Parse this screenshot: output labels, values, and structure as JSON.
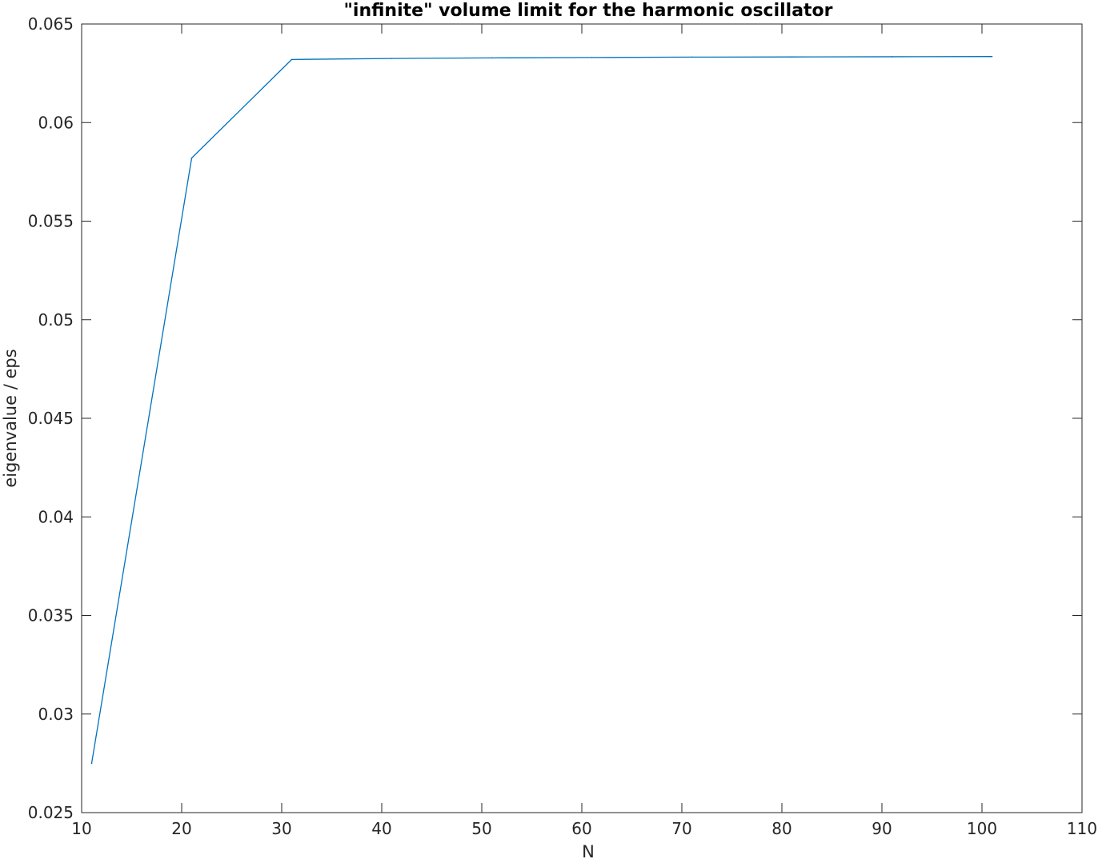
{
  "chart_data": {
    "type": "line",
    "title": "\"infinite\" volume limit for the harmonic oscillator",
    "xlabel": "N",
    "ylabel": "eigenvalue / eps",
    "xlim": [
      10,
      110
    ],
    "ylim": [
      0.025,
      0.065
    ],
    "xticks": [
      10,
      20,
      30,
      40,
      50,
      60,
      70,
      80,
      90,
      100,
      110
    ],
    "xtick_labels": [
      "10",
      "20",
      "30",
      "40",
      "50",
      "60",
      "70",
      "80",
      "90",
      "100",
      "110"
    ],
    "yticks": [
      0.025,
      0.03,
      0.035,
      0.04,
      0.045,
      0.05,
      0.055,
      0.06,
      0.065
    ],
    "ytick_labels": [
      "0.025",
      "0.03",
      "0.035",
      "0.04",
      "0.045",
      "0.05",
      "0.055",
      "0.06",
      "0.065"
    ],
    "grid": false,
    "series": [
      {
        "x": [
          11,
          21,
          31,
          41,
          51,
          61,
          71,
          81,
          91,
          101
        ],
        "values": [
          0.0275,
          0.0582,
          0.0632,
          0.06325,
          0.06328,
          0.0633,
          0.06332,
          0.06333,
          0.06334,
          0.06335
        ],
        "color": "#0072BD"
      }
    ]
  }
}
